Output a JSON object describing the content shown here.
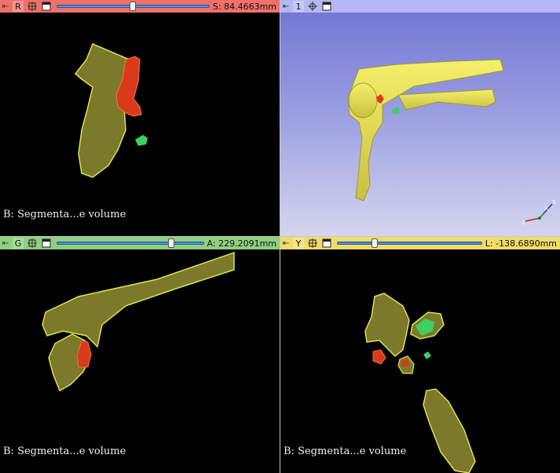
{
  "views": {
    "red": {
      "letter": "R",
      "offset": "S: 84.4663mm",
      "slider_fraction": 0.5,
      "annotation": "B: Segmenta...e volume",
      "color": "#f0706a"
    },
    "threed": {
      "letter": "1",
      "color": "#b4b8f4",
      "orientation_labels": [
        "L",
        "A",
        "S"
      ]
    },
    "green": {
      "letter": "G",
      "offset": "A: 229.2091mm",
      "slider_fraction": 0.78,
      "annotation": "B: Segmenta...e volume",
      "color": "#8ed07e"
    },
    "yellow": {
      "letter": "Y",
      "offset": "L: -138.6890mm",
      "slider_fraction": 0.26,
      "annotation": "B: Segmenta...e volume",
      "color": "#f0dc6a"
    }
  },
  "segment_colors": {
    "bone": "#7b7a2a",
    "bone_outline": "#e0df5a",
    "red_segment": "#d83a1a",
    "green_segment": "#3ed060"
  },
  "icons": {
    "pin": "pin-icon",
    "link": "link-icon",
    "crosshair": "crosshair-icon",
    "window": "window-icon"
  }
}
